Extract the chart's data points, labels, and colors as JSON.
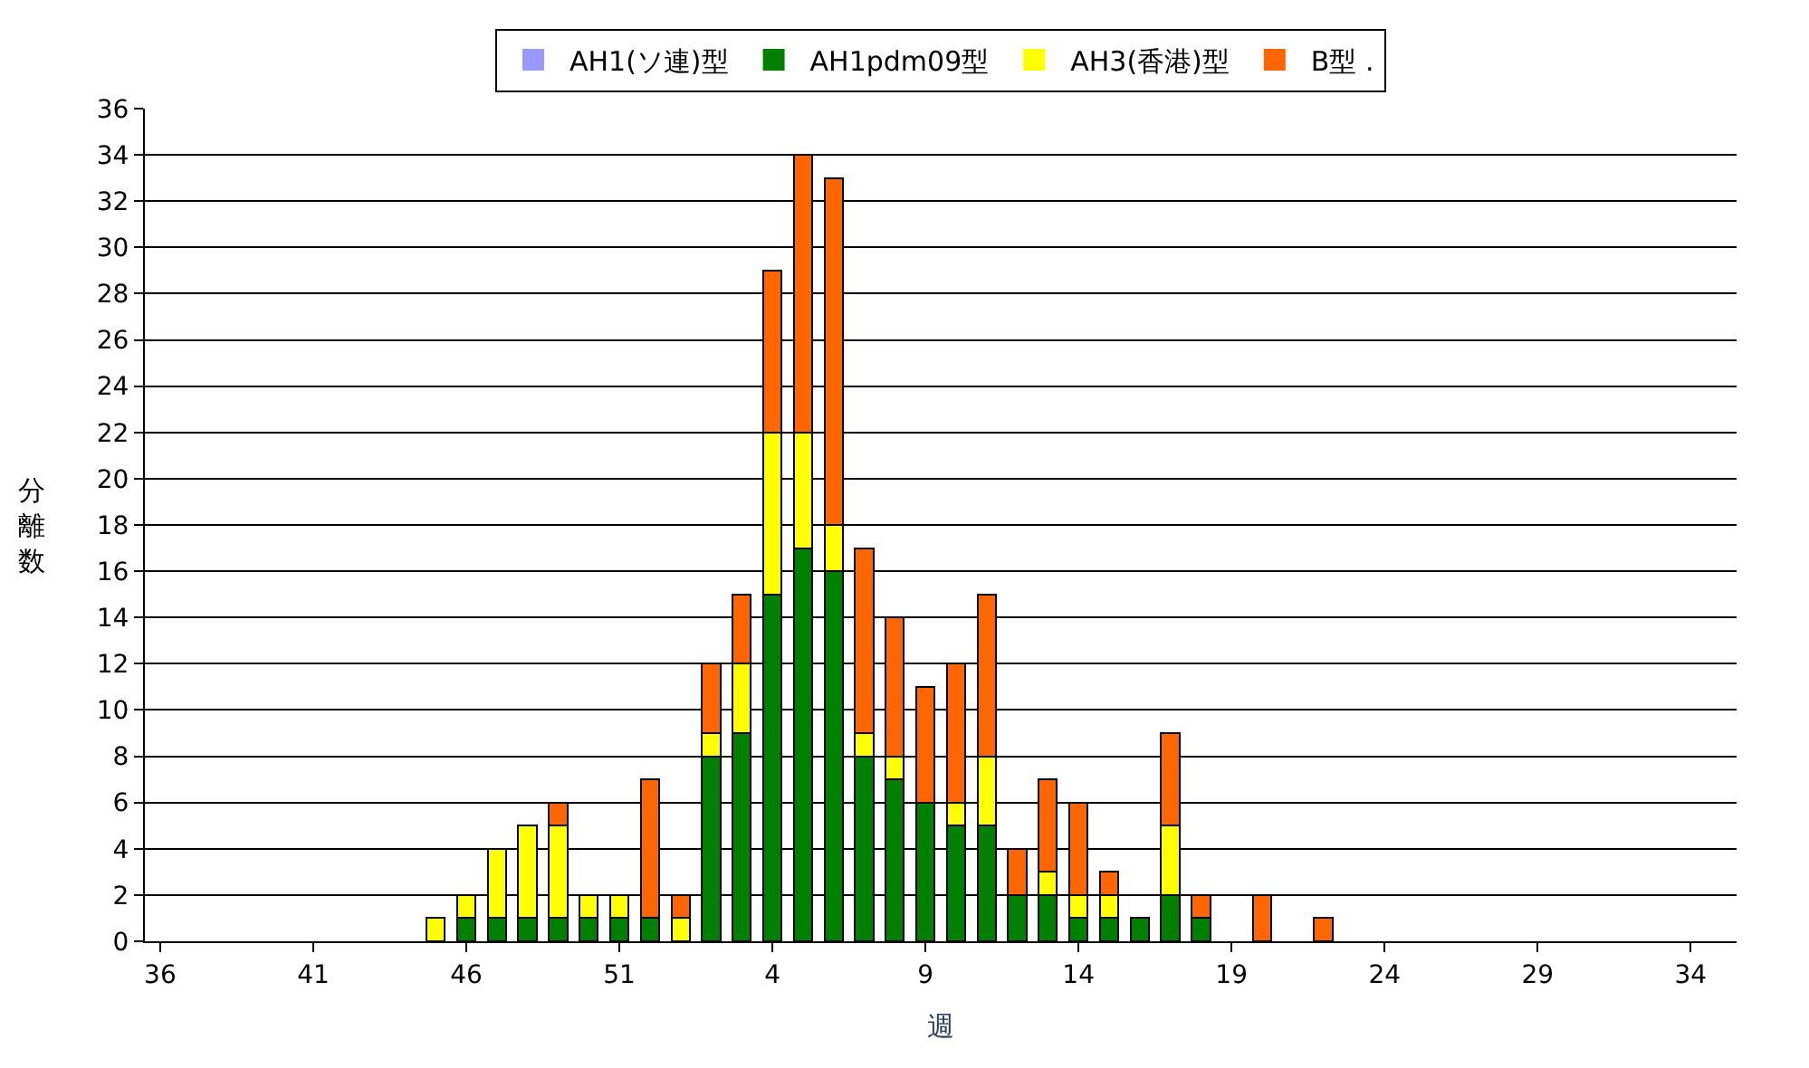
{
  "chart_data": {
    "type": "bar",
    "stacked": true,
    "xlabel": "週",
    "ylabel": "分離数",
    "categories": [
      "36",
      null,
      null,
      null,
      null,
      "41",
      null,
      null,
      null,
      null,
      "46",
      null,
      null,
      null,
      null,
      "51",
      null,
      null,
      null,
      null,
      "4",
      null,
      null,
      null,
      null,
      "9",
      null,
      null,
      null,
      null,
      "14",
      null,
      null,
      null,
      null,
      "19",
      null,
      null,
      null,
      null,
      "24",
      null,
      null,
      null,
      null,
      "29",
      null,
      null,
      null,
      null,
      "34",
      null
    ],
    "series": [
      {
        "name": "AH1(ソ連)型",
        "color": "#9999ff",
        "values": [
          0,
          0,
          0,
          0,
          0,
          0,
          0,
          0,
          0,
          0,
          0,
          0,
          0,
          0,
          0,
          0,
          0,
          0,
          0,
          0,
          0,
          0,
          0,
          0,
          0,
          0,
          0,
          0,
          0,
          0,
          0,
          0,
          0,
          0,
          0,
          0,
          0,
          0,
          0,
          0,
          0,
          0,
          0,
          0,
          0,
          0,
          0,
          0,
          0,
          0,
          0,
          0
        ]
      },
      {
        "name": "AH1pdm09型",
        "color": "#008000",
        "values": [
          0,
          0,
          0,
          0,
          0,
          0,
          0,
          0,
          0,
          0,
          1,
          1,
          1,
          1,
          1,
          1,
          1,
          0,
          8,
          9,
          15,
          17,
          16,
          8,
          7,
          6,
          5,
          5,
          2,
          2,
          1,
          1,
          1,
          2,
          1,
          0,
          0,
          0,
          0,
          0,
          0,
          0,
          0,
          0,
          0,
          0,
          0,
          0,
          0,
          0,
          0,
          0
        ]
      },
      {
        "name": "AH3(香港)型",
        "color": "#ffff00",
        "values": [
          0,
          0,
          0,
          0,
          0,
          0,
          0,
          0,
          0,
          1,
          1,
          3,
          4,
          4,
          1,
          1,
          0,
          1,
          1,
          3,
          7,
          5,
          2,
          1,
          1,
          0,
          1,
          3,
          0,
          1,
          1,
          1,
          0,
          3,
          0,
          0,
          0,
          0,
          0,
          0,
          0,
          0,
          0,
          0,
          0,
          0,
          0,
          0,
          0,
          0,
          0,
          0
        ]
      },
      {
        "name": "B型 .",
        "color": "#ff6600",
        "values": [
          0,
          0,
          0,
          0,
          0,
          0,
          0,
          0,
          0,
          0,
          0,
          0,
          0,
          1,
          0,
          0,
          6,
          1,
          3,
          3,
          7,
          12,
          15,
          8,
          6,
          5,
          6,
          7,
          2,
          4,
          4,
          1,
          0,
          4,
          1,
          0,
          2,
          0,
          1,
          0,
          0,
          0,
          0,
          0,
          0,
          0,
          0,
          0,
          0,
          0,
          0,
          0
        ]
      }
    ],
    "ylim": [
      0,
      36
    ],
    "yticks": [
      0,
      2,
      4,
      6,
      8,
      10,
      12,
      14,
      16,
      18,
      20,
      22,
      24,
      26,
      28,
      30,
      32,
      34,
      36
    ],
    "grid": "y",
    "legend": "top"
  }
}
